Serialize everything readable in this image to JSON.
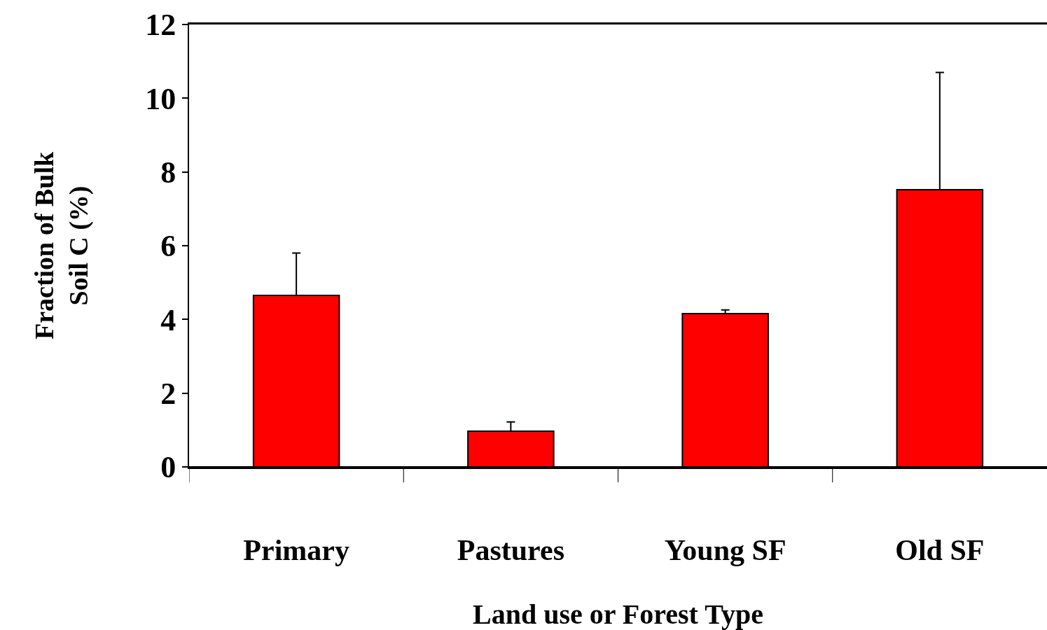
{
  "chart_data": {
    "type": "bar",
    "xlabel": "Land use or Forest Type",
    "ylabel": "Fraction of Bulk Soil C (%)",
    "categories": [
      "Primary",
      "Pastures",
      "Young SF",
      "Old SF"
    ],
    "values": [
      4.65,
      0.97,
      4.16,
      7.52
    ],
    "errors": [
      [
        4.65,
        5.8
      ],
      [
        0.97,
        1.22
      ],
      [
        4.16,
        4.26
      ],
      [
        7.52,
        10.7
      ]
    ],
    "color": "#ff0000",
    "ylim": [
      0,
      12
    ],
    "yticks": [
      0,
      2,
      4,
      6,
      8,
      10,
      12
    ],
    "grid": false,
    "legend": false
  }
}
